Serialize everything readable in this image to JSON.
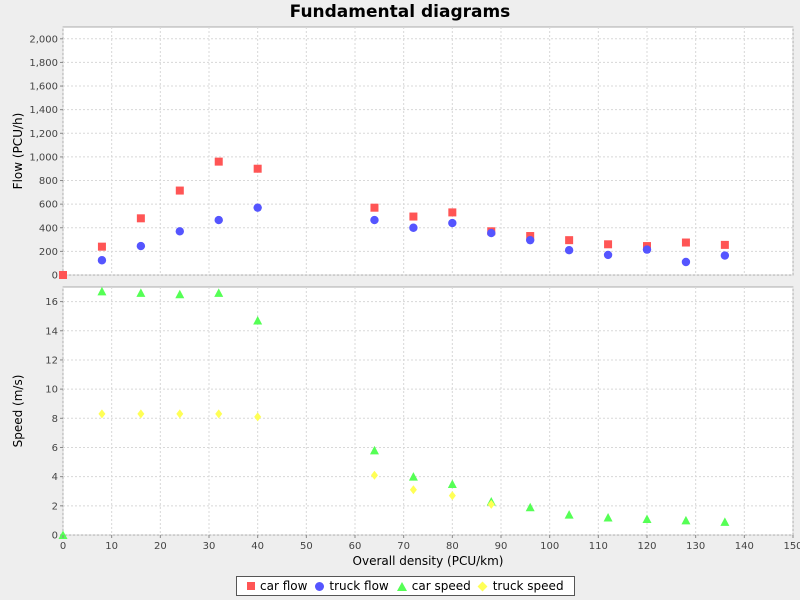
{
  "chart_data": {
    "title": "Fundamental diagrams",
    "type": "scatter",
    "xlabel": "Overall density (PCU/km)",
    "xlim": [
      0,
      150
    ],
    "xticks": [
      "0",
      "10",
      "20",
      "30",
      "40",
      "50",
      "60",
      "70",
      "80",
      "90",
      "100",
      "110",
      "120",
      "130",
      "140",
      "150"
    ],
    "grid": true,
    "legend_position": "bottom",
    "panels": [
      {
        "ylabel": "Flow (PCU/h)",
        "ylim": [
          0,
          2100
        ],
        "yticks": [
          "0",
          "200",
          "400",
          "600",
          "800",
          "1,000",
          "1,200",
          "1,400",
          "1,600",
          "1,800",
          "2,000"
        ],
        "series": [
          {
            "name": "car flow",
            "marker": "square",
            "color": "#ff5555",
            "x": [
              0,
              8,
              16,
              24,
              32,
              40,
              64,
              72,
              80,
              88,
              96,
              104,
              112,
              120,
              128,
              136
            ],
            "y": [
              0,
              240,
              480,
              715,
              960,
              900,
              570,
              495,
              530,
              370,
              330,
              295,
              260,
              245,
              275,
              255
            ]
          },
          {
            "name": "truck flow",
            "marker": "circle",
            "color": "#5555ff",
            "x": [
              8,
              16,
              24,
              32,
              40,
              64,
              72,
              80,
              88,
              96,
              104,
              112,
              120,
              128,
              136
            ],
            "y": [
              125,
              245,
              370,
              465,
              570,
              465,
              400,
              440,
              355,
              295,
              210,
              170,
              215,
              110,
              165
            ]
          }
        ]
      },
      {
        "ylabel": "Speed (m/s)",
        "ylim": [
          0,
          17
        ],
        "yticks": [
          "0",
          "2",
          "4",
          "6",
          "8",
          "10",
          "12",
          "14",
          "16"
        ],
        "series": [
          {
            "name": "car speed",
            "marker": "triangle",
            "color": "#55ff55",
            "x": [
              0,
              8,
              16,
              24,
              32,
              40,
              64,
              72,
              80,
              88,
              96,
              104,
              112,
              120,
              128,
              136
            ],
            "y": [
              0,
              16.7,
              16.6,
              16.5,
              16.6,
              14.7,
              5.8,
              4.0,
              3.5,
              2.3,
              1.9,
              1.4,
              1.2,
              1.1,
              1.0,
              0.9
            ]
          },
          {
            "name": "truck speed",
            "marker": "diamond",
            "color": "#ffff55",
            "x": [
              8,
              16,
              24,
              32,
              40,
              64,
              72,
              80,
              88
            ],
            "y": [
              8.3,
              8.3,
              8.3,
              8.3,
              8.1,
              4.1,
              3.1,
              2.7,
              2.1
            ]
          }
        ]
      }
    ]
  }
}
